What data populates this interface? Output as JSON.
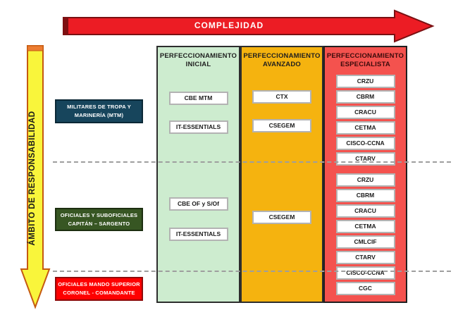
{
  "top_arrow": {
    "label": "COMPLEJIDAD",
    "fill": "#ec1c24",
    "border": "#7a1012",
    "cap": "#7f1012"
  },
  "left_arrow": {
    "label": "ÁMBITO  DE  RESPONSABILIDAD",
    "fill": "#f9f53b",
    "border": "#c55a11",
    "cap": "#ed7d31"
  },
  "columns": [
    {
      "key": "inicial",
      "header": "PERFECCIONAMIENTO INICIAL",
      "bg": "#cdeccf"
    },
    {
      "key": "avanzado",
      "header": "PERFECCIONAMIENTO AVANZADO",
      "bg": "#f5b30f"
    },
    {
      "key": "especialista",
      "header": "PERFECCIONAMIENTO ESPECIALISTA",
      "bg": "#f4524e"
    }
  ],
  "bands": [
    {
      "key": "mtm",
      "label": "MILITARES  DE TROPA Y MARINERÍA  (MTM)",
      "bg": "#17455c"
    },
    {
      "key": "oficiales",
      "label": "OFICIALES Y SUBOFICIALES CAPITÁN – SARGENTO",
      "bg": "#375623"
    },
    {
      "key": "superior",
      "label": "OFICIALES MANDO SUPERIOR CORONEL - COMANDANTE",
      "bg": "#fe0000"
    }
  ],
  "courses": {
    "inicial": {
      "mtm": [
        "CBE MTM",
        "IT-ESSENTIALS"
      ],
      "oficiales": [
        "CBE OF y S/Of",
        "IT-ESSENTIALS"
      ],
      "superior": []
    },
    "avanzado": {
      "mtm": [
        "CTX",
        "CSEGEM"
      ],
      "oficiales": [
        "CSEGEM"
      ],
      "superior": []
    },
    "especialista": {
      "mtm": [
        "CRZU",
        "CBRM",
        "CRACU",
        "CETMA",
        "CISCO-CCNA",
        "CTARV"
      ],
      "oficiales": [
        "CRZU",
        "CBRM",
        "CRACU",
        "CETMA",
        "CMLCIF",
        "CTARV",
        "CISCO-CCNA"
      ],
      "superior": [
        "CGC"
      ]
    }
  }
}
